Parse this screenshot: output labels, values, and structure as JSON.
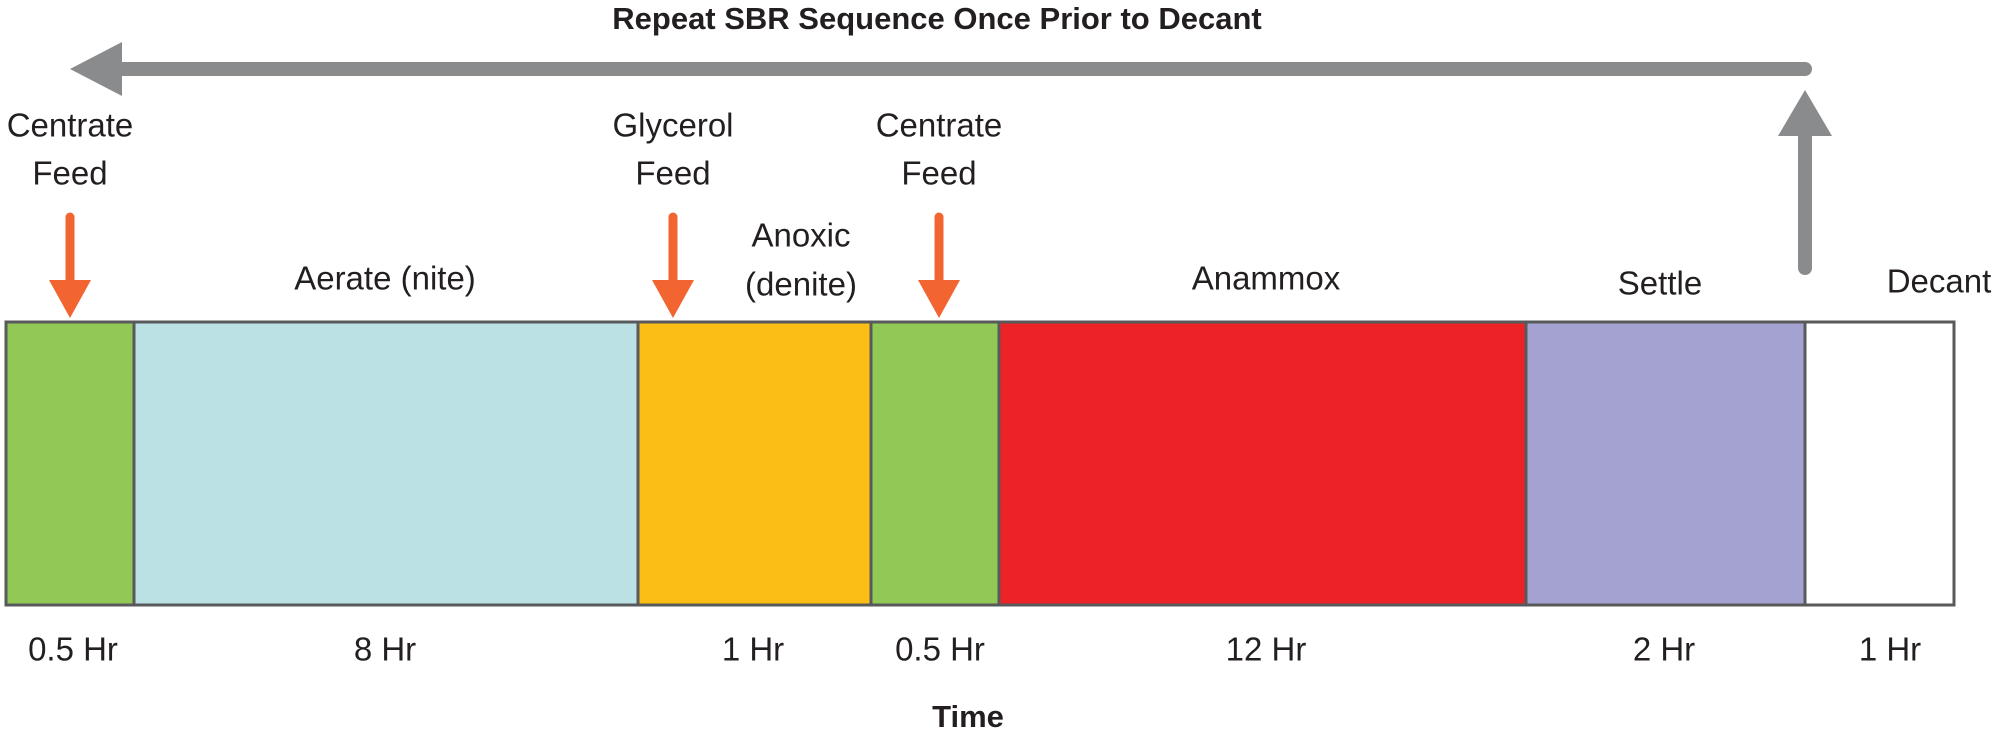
{
  "title": "Repeat SBR Sequence Once Prior to Decant",
  "feeds": [
    {
      "lines": [
        "Centrate",
        "Feed"
      ]
    },
    {
      "lines": [
        "Glycerol",
        "Feed"
      ]
    },
    {
      "lines": [
        "Centrate",
        "Feed"
      ]
    }
  ],
  "phases": [
    {
      "duration": "0.5 Hr"
    },
    {
      "label": [
        "Aerate (nite)"
      ],
      "duration": "8 Hr"
    },
    {
      "label": [
        "Anoxic",
        "(denite)"
      ],
      "duration": "1 Hr"
    },
    {
      "duration": "0.5 Hr"
    },
    {
      "label": [
        "Anammox"
      ],
      "duration": "12 Hr"
    },
    {
      "label": [
        "Settle"
      ],
      "duration": "2 Hr"
    },
    {
      "label": [
        "Decant"
      ],
      "duration": "1 Hr"
    }
  ],
  "x_label": "Time"
}
